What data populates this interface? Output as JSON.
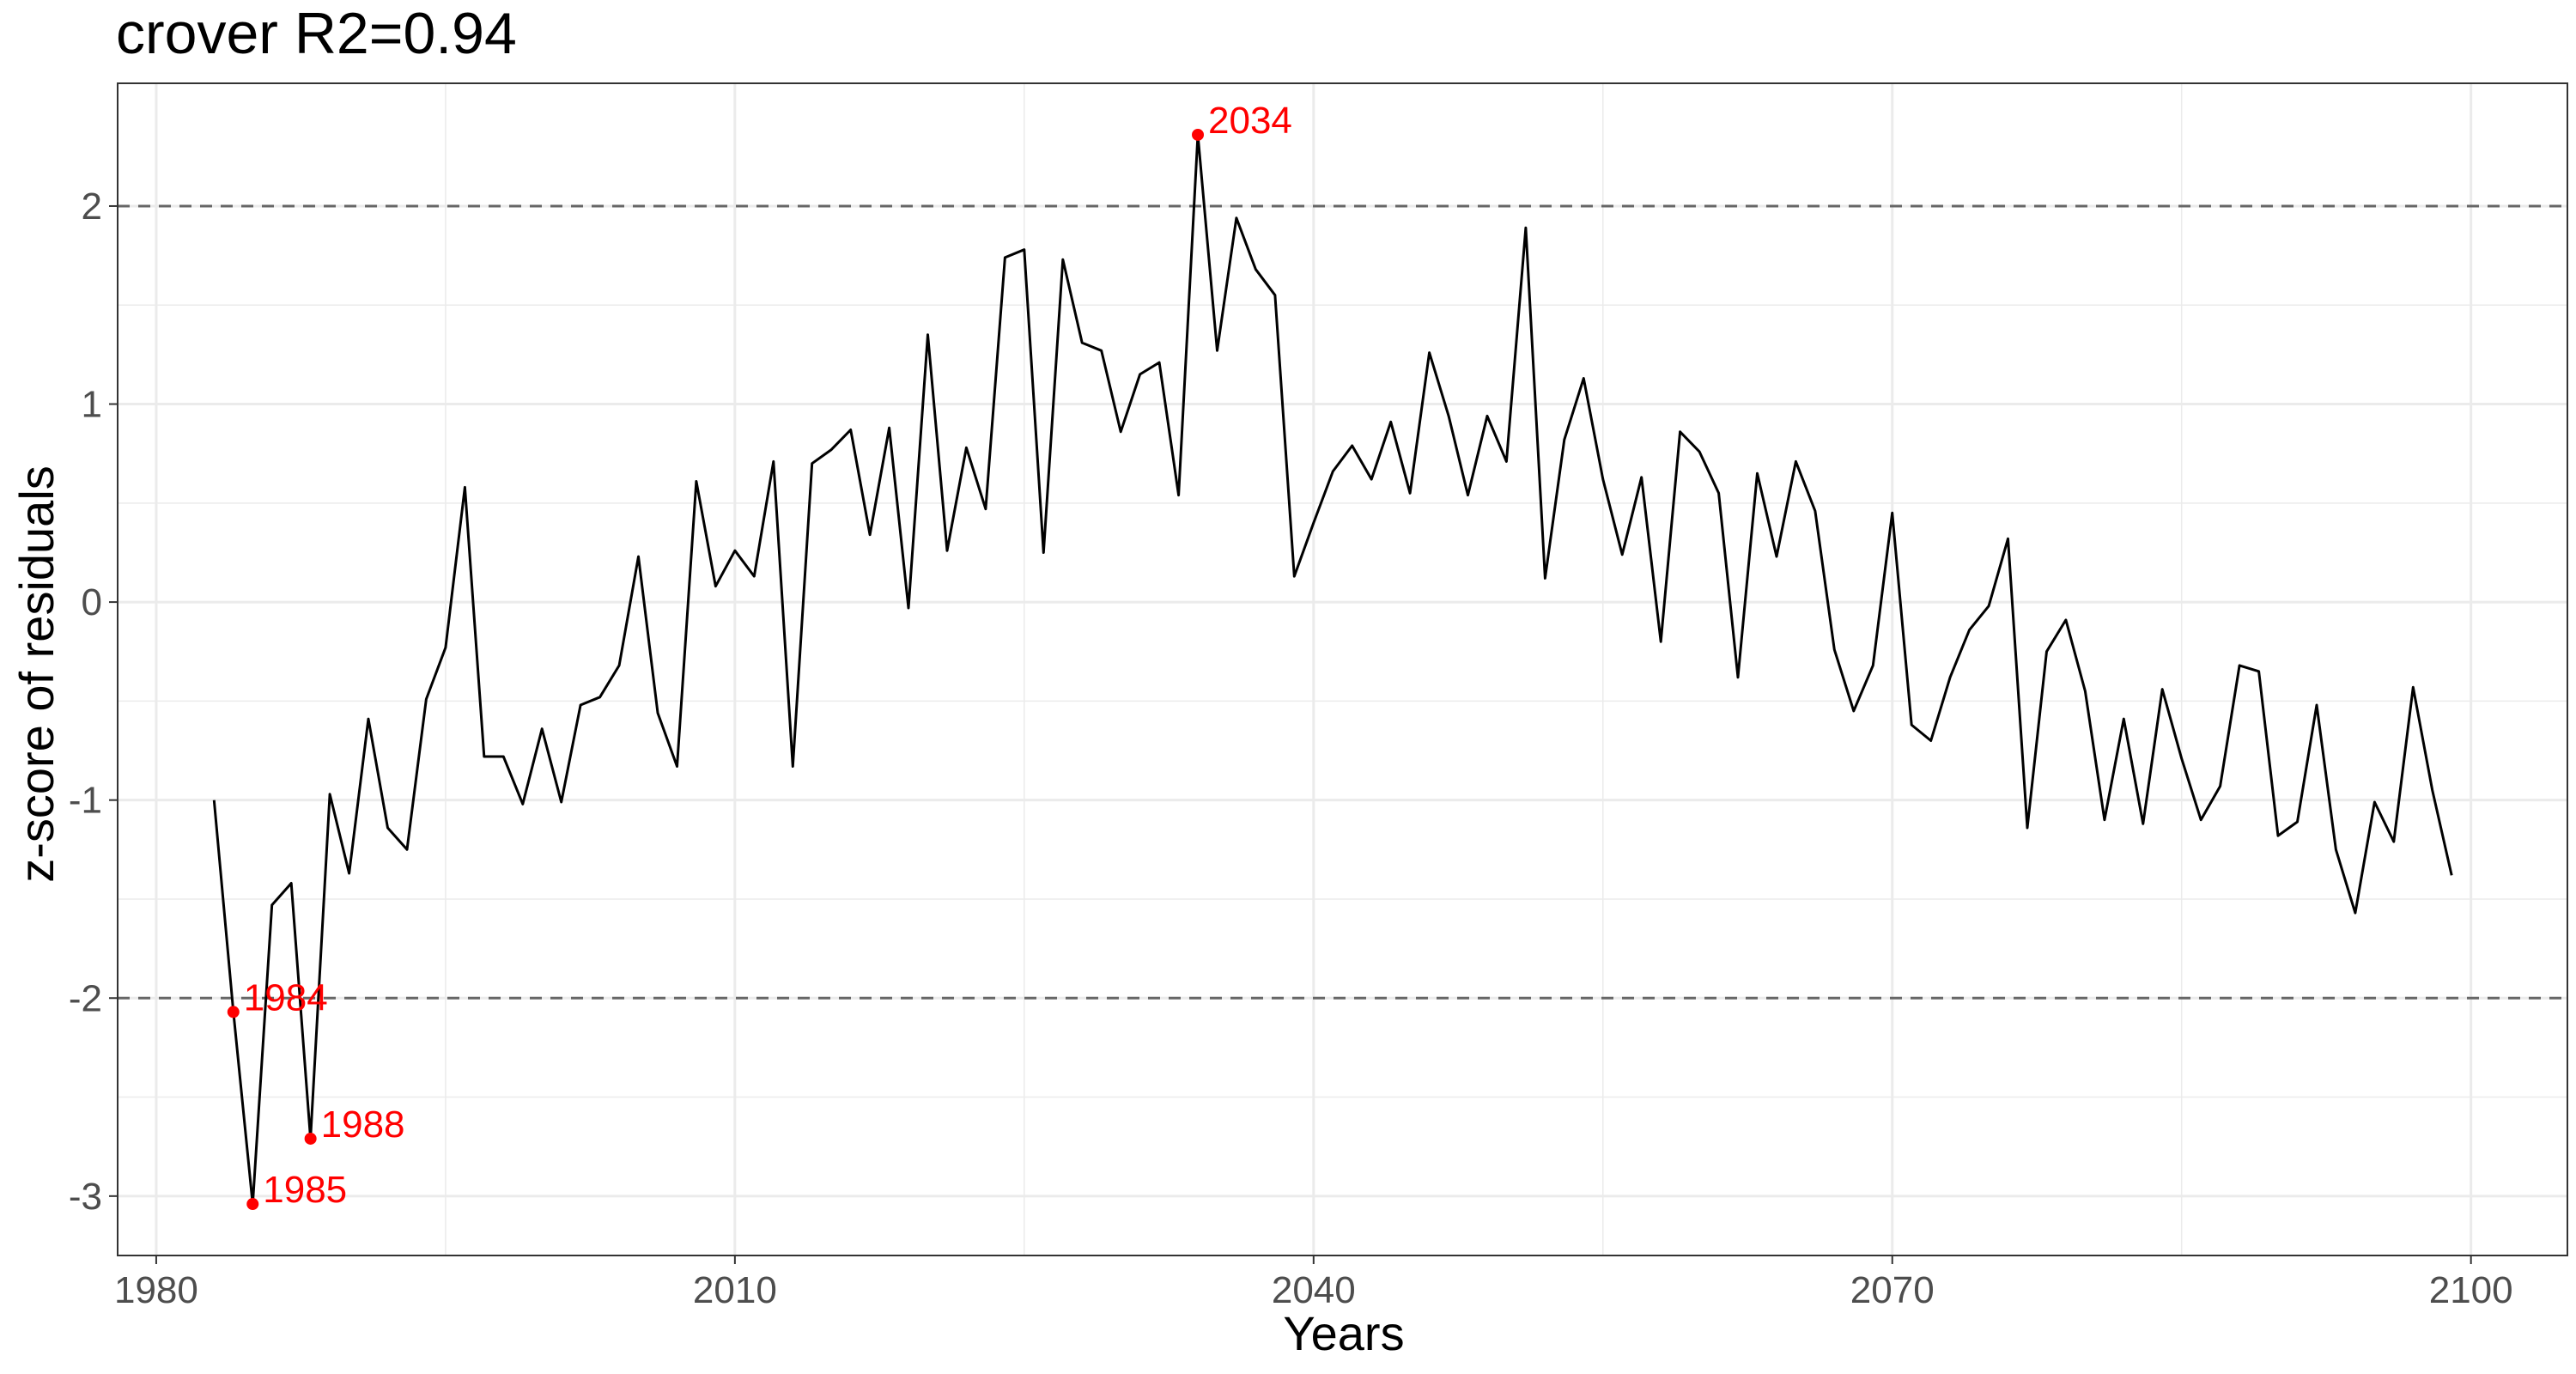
{
  "chart_data": {
    "type": "line",
    "title": "crover  R2=0.94",
    "xlabel": "Years",
    "ylabel": "z-score of residuals",
    "xlim": [
      1978,
      2105
    ],
    "ylim": [
      -3.3,
      2.62
    ],
    "x_ticks": [
      1980,
      2010,
      2040,
      2070,
      2100
    ],
    "x_tick_labels": [
      "1980",
      "2010",
      "2040",
      "2070",
      "2100"
    ],
    "y_ticks": [
      -3,
      -2,
      -1,
      0,
      1,
      2
    ],
    "y_tick_labels": [
      "-3",
      "-2",
      "-1",
      "0",
      "1",
      "2"
    ],
    "grid": true,
    "reference_lines": [
      2,
      -2
    ],
    "series": [
      {
        "x": [
          1983,
          1984,
          1985,
          1986,
          1987,
          1988,
          1989,
          1990,
          1991,
          1992,
          1993,
          1994,
          1995,
          1996,
          1997,
          1998,
          1999,
          2000,
          2001,
          2002,
          2003,
          2004,
          2005,
          2006,
          2007,
          2008,
          2009,
          2010,
          2011,
          2012,
          2013,
          2014,
          2015,
          2016,
          2017,
          2018,
          2019,
          2020,
          2021,
          2022,
          2023,
          2024,
          2025,
          2026,
          2027,
          2028,
          2029,
          2030,
          2031,
          2032,
          2033,
          2034,
          2035,
          2036,
          2037,
          2038,
          2039,
          2040,
          2041,
          2042,
          2043,
          2044,
          2045,
          2046,
          2047,
          2048,
          2049,
          2050,
          2051,
          2052,
          2053,
          2054,
          2055,
          2056,
          2057,
          2058,
          2059,
          2060,
          2061,
          2062,
          2063,
          2064,
          2065,
          2066,
          2067,
          2068,
          2069,
          2070,
          2071,
          2072,
          2073,
          2074,
          2075,
          2076,
          2077,
          2078,
          2079,
          2080,
          2081,
          2082,
          2083,
          2084,
          2085,
          2086,
          2087,
          2088,
          2089,
          2090,
          2091,
          2092,
          2093,
          2094,
          2095,
          2096,
          2097,
          2098,
          2099
        ],
        "y": [
          -1.0,
          -2.07,
          -3.04,
          -1.53,
          -1.42,
          -2.71,
          -0.97,
          -1.37,
          -0.59,
          -1.14,
          -1.25,
          -0.49,
          -0.23,
          0.58,
          -0.78,
          -0.78,
          -1.02,
          -0.64,
          -1.01,
          -0.52,
          -0.48,
          -0.32,
          0.23,
          -0.56,
          -0.83,
          0.61,
          0.08,
          0.26,
          0.13,
          0.71,
          -0.83,
          0.7,
          0.77,
          0.87,
          0.34,
          0.88,
          -0.03,
          1.35,
          0.26,
          0.78,
          0.47,
          1.74,
          1.78,
          0.25,
          1.73,
          1.31,
          1.27,
          0.86,
          1.15,
          1.21,
          0.54,
          2.36,
          1.27,
          1.94,
          1.68,
          1.55,
          0.13,
          0.4,
          0.66,
          0.79,
          0.62,
          0.91,
          0.55,
          1.26,
          0.94,
          0.54,
          0.94,
          0.71,
          1.89,
          0.12,
          0.82,
          1.13,
          0.62,
          0.24,
          0.63,
          -0.2,
          0.86,
          0.76,
          0.55,
          -0.38,
          0.65,
          0.23,
          0.71,
          0.46,
          -0.24,
          -0.55,
          -0.32,
          0.45,
          -0.62,
          -0.7,
          -0.38,
          -0.14,
          -0.02,
          0.32,
          -1.14,
          -0.25,
          -0.09,
          -0.45,
          -1.1,
          -0.59,
          -1.12,
          -0.44,
          -0.79,
          -1.1,
          -0.93,
          -0.32,
          -0.35,
          -1.18,
          -1.11,
          -0.52,
          -1.25,
          -1.57,
          -1.01,
          -1.21,
          -0.43,
          -0.95,
          -1.38
        ]
      }
    ],
    "highlighted_points": [
      {
        "x": 1984,
        "y": -2.07,
        "label": "1984"
      },
      {
        "x": 1985,
        "y": -3.04,
        "label": "1985"
      },
      {
        "x": 1988,
        "y": -2.71,
        "label": "1988"
      },
      {
        "x": 2034,
        "y": 2.36,
        "label": "2034"
      }
    ],
    "colors": {
      "line": "#000000",
      "highlight": "#ff0000",
      "reference": "#666666",
      "grid": "#ebebeb",
      "panel_border": "#333333"
    }
  }
}
